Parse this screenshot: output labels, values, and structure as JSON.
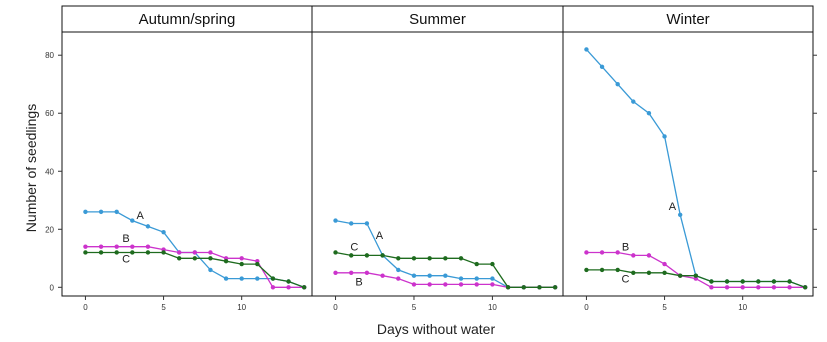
{
  "chart_data": {
    "type": "line",
    "xlabel": "Days without water",
    "ylabel": "Number of seedlings",
    "xlim": [
      -1.5,
      14.5
    ],
    "ylim": [
      -3,
      88
    ],
    "xticks": [
      0,
      5,
      10
    ],
    "yticks": [
      0,
      20,
      40,
      60,
      80
    ],
    "colors": {
      "A": "#3a9ad6",
      "B": "#cc33cc",
      "C": "#1e6b1e"
    },
    "panels": [
      {
        "title": "Autumn/spring",
        "series": [
          {
            "name": "A",
            "x": [
              0,
              1,
              2,
              3,
              4,
              5,
              6,
              7,
              8,
              9,
              10,
              11,
              12,
              13,
              14
            ],
            "y": [
              26,
              26,
              26,
              23,
              21,
              19,
              12,
              12,
              6,
              3,
              3,
              3,
              3,
              2,
              0
            ],
            "label_x": 3.5,
            "label_y": 25
          },
          {
            "name": "B",
            "x": [
              0,
              1,
              2,
              3,
              4,
              5,
              6,
              7,
              8,
              9,
              10,
              11,
              12,
              13,
              14
            ],
            "y": [
              14,
              14,
              14,
              14,
              14,
              13,
              12,
              12,
              12,
              10,
              10,
              9,
              0,
              0,
              0
            ],
            "label_x": 2.6,
            "label_y": 17
          },
          {
            "name": "C",
            "x": [
              0,
              1,
              2,
              3,
              4,
              5,
              6,
              7,
              8,
              9,
              10,
              11,
              12,
              13,
              14
            ],
            "y": [
              12,
              12,
              12,
              12,
              12,
              12,
              10,
              10,
              10,
              9,
              8,
              8,
              3,
              2,
              0
            ],
            "label_x": 2.6,
            "label_y": 10
          }
        ]
      },
      {
        "title": "Summer",
        "series": [
          {
            "name": "A",
            "x": [
              0,
              1,
              2,
              3,
              4,
              5,
              6,
              7,
              8,
              9,
              10,
              11,
              12,
              13,
              14
            ],
            "y": [
              23,
              22,
              22,
              11,
              6,
              4,
              4,
              4,
              3,
              3,
              3,
              0,
              0,
              0,
              0
            ],
            "label_x": 2.8,
            "label_y": 18
          },
          {
            "name": "B",
            "x": [
              0,
              1,
              2,
              3,
              4,
              5,
              6,
              7,
              8,
              9,
              10,
              11,
              12,
              13,
              14
            ],
            "y": [
              5,
              5,
              5,
              4,
              3,
              1,
              1,
              1,
              1,
              1,
              1,
              0,
              0,
              0,
              0
            ],
            "label_x": 1.5,
            "label_y": 2
          },
          {
            "name": "C",
            "x": [
              0,
              1,
              2,
              3,
              4,
              5,
              6,
              7,
              8,
              9,
              10,
              11,
              12,
              13,
              14
            ],
            "y": [
              12,
              11,
              11,
              11,
              10,
              10,
              10,
              10,
              10,
              8,
              8,
              0,
              0,
              0,
              0
            ],
            "label_x": 1.2,
            "label_y": 14
          }
        ]
      },
      {
        "title": "Winter",
        "series": [
          {
            "name": "A",
            "x": [
              0,
              1,
              2,
              3,
              4,
              5,
              6,
              7,
              8,
              9,
              10,
              11,
              12,
              13,
              14
            ],
            "y": [
              82,
              76,
              70,
              64,
              60,
              52,
              25,
              4,
              2,
              2,
              2,
              2,
              2,
              2,
              0
            ],
            "label_x": 5.5,
            "label_y": 28
          },
          {
            "name": "B",
            "x": [
              0,
              1,
              2,
              3,
              4,
              5,
              6,
              7,
              8,
              9,
              10,
              11,
              12,
              13,
              14
            ],
            "y": [
              12,
              12,
              12,
              11,
              11,
              8,
              4,
              3,
              0,
              0,
              0,
              0,
              0,
              0,
              0
            ],
            "label_x": 2.5,
            "label_y": 14
          },
          {
            "name": "C",
            "x": [
              0,
              1,
              2,
              3,
              4,
              5,
              6,
              7,
              8,
              9,
              10,
              11,
              12,
              13,
              14
            ],
            "y": [
              6,
              6,
              6,
              5,
              5,
              5,
              4,
              4,
              2,
              2,
              2,
              2,
              2,
              2,
              0
            ],
            "label_x": 2.5,
            "label_y": 3
          }
        ]
      }
    ]
  }
}
